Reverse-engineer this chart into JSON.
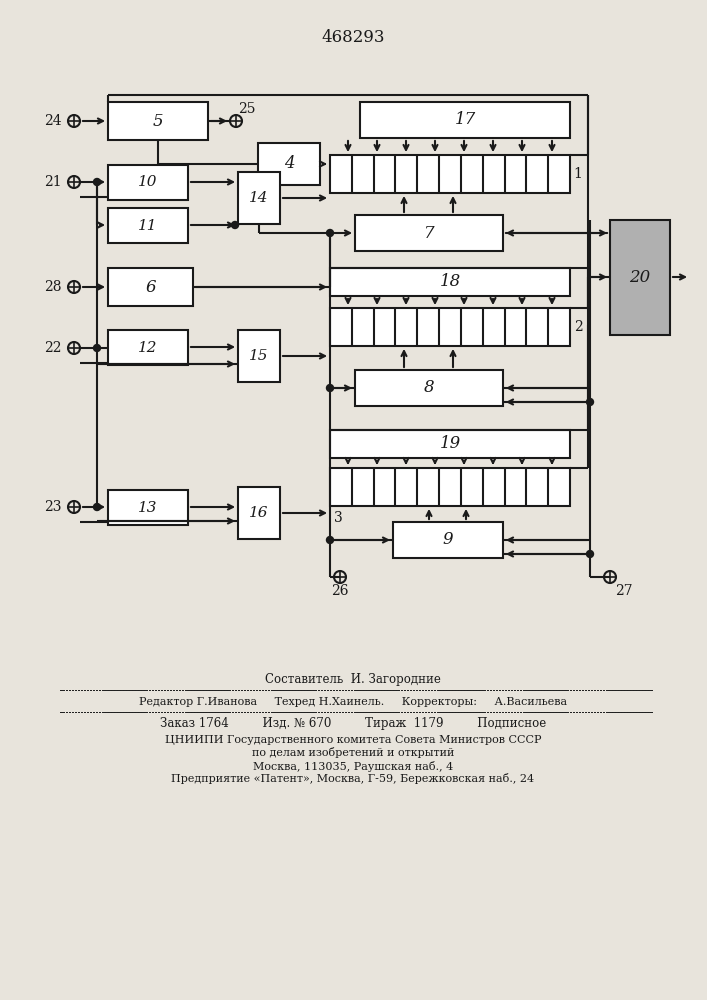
{
  "title": "468293",
  "bg_color": "#e8e4dc",
  "line_color": "#1a1a1a",
  "footer_line1": "Составитель  И. Загородние",
  "footer_line2": "Редактор Г.Иванова     Техред Н.Хаинель.     Корректоры:     А.Васильева",
  "footer_line3": "Заказ 1764         Изд. № 670         Тираж  1179         Подписное",
  "footer_line4": "ЦНИИПИ Государственного комитета Совета Министров СССР",
  "footer_line5": "по делам изобретений и открытий",
  "footer_line6": "Москва, 113035, Раушская наб., 4",
  "footer_line7": "Предприятие «Патент», Москва, Г-59, Бережковская наб., 24"
}
